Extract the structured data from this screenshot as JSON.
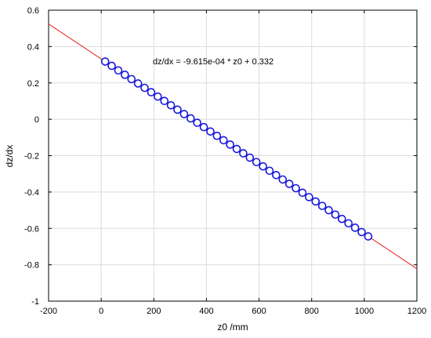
{
  "chart_data": {
    "type": "scatter",
    "xlabel": "z0 /mm",
    "ylabel": "dz/dx",
    "xlim": [
      -200,
      1200
    ],
    "ylim": [
      -1,
      0.6
    ],
    "xticks": [
      -200,
      0,
      200,
      400,
      600,
      800,
      1000,
      1200
    ],
    "yticks": [
      -1,
      -0.8,
      -0.6,
      -0.4,
      -0.2,
      0,
      0.2,
      0.4,
      0.6
    ],
    "xtick_labels": [
      "-200",
      "0",
      "200",
      "400",
      "600",
      "800",
      "1000",
      "1200"
    ],
    "ytick_labels": [
      "-1",
      "-0.8",
      "-0.6",
      "-0.4",
      "-0.2",
      "0",
      "0.2",
      "0.4",
      "0.6"
    ],
    "grid": true,
    "annotation": "dz/dx = -9.615e-04 * z0 + 0.332",
    "fit": {
      "slope": -0.0009615,
      "intercept": 0.332,
      "color": "#e8231c"
    },
    "marker_color": "#1a1adb",
    "marker_fill": "#ffffff",
    "points": {
      "x": [
        15,
        40,
        65,
        90,
        115,
        140,
        165,
        190,
        215,
        240,
        265,
        290,
        315,
        340,
        365,
        390,
        415,
        440,
        465,
        490,
        515,
        540,
        565,
        590,
        615,
        640,
        665,
        690,
        715,
        740,
        765,
        790,
        815,
        840,
        865,
        890,
        915,
        940,
        965,
        990,
        1015
      ],
      "y": [
        0.318,
        0.294,
        0.269,
        0.245,
        0.221,
        0.197,
        0.173,
        0.149,
        0.125,
        0.101,
        0.077,
        0.053,
        0.029,
        0.005,
        -0.019,
        -0.043,
        -0.067,
        -0.091,
        -0.115,
        -0.139,
        -0.163,
        -0.187,
        -0.211,
        -0.235,
        -0.259,
        -0.283,
        -0.307,
        -0.331,
        -0.355,
        -0.379,
        -0.404,
        -0.428,
        -0.452,
        -0.476,
        -0.5,
        -0.524,
        -0.548,
        -0.572,
        -0.596,
        -0.62,
        -0.644
      ]
    }
  }
}
